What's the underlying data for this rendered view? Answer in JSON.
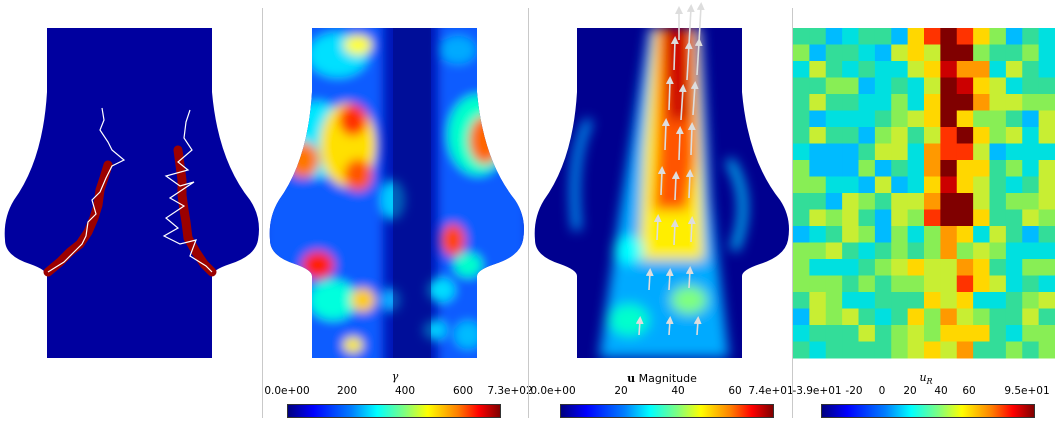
{
  "colorbars": {
    "gamma": {
      "title": "γ",
      "ticks": [
        "0.0e+00",
        "200",
        "400",
        "600",
        "7.3e+02"
      ]
    },
    "velocity": {
      "title_symbol": "u",
      "title_text": "Magnitude",
      "ticks": [
        "0.0e+00",
        "20",
        "40",
        "60",
        "7.4e+01"
      ]
    },
    "uR": {
      "title_symbol": "u",
      "title_sub": "R",
      "ticks": [
        "-3.9e+01",
        "-20",
        "0",
        "20",
        "40",
        "60",
        "9.5e+01"
      ]
    }
  },
  "colors": {
    "domain_blue": "#00009f",
    "dark_red": "#9b0000",
    "crack_line": "#ffffff",
    "separator": "#c9c9c9"
  }
}
